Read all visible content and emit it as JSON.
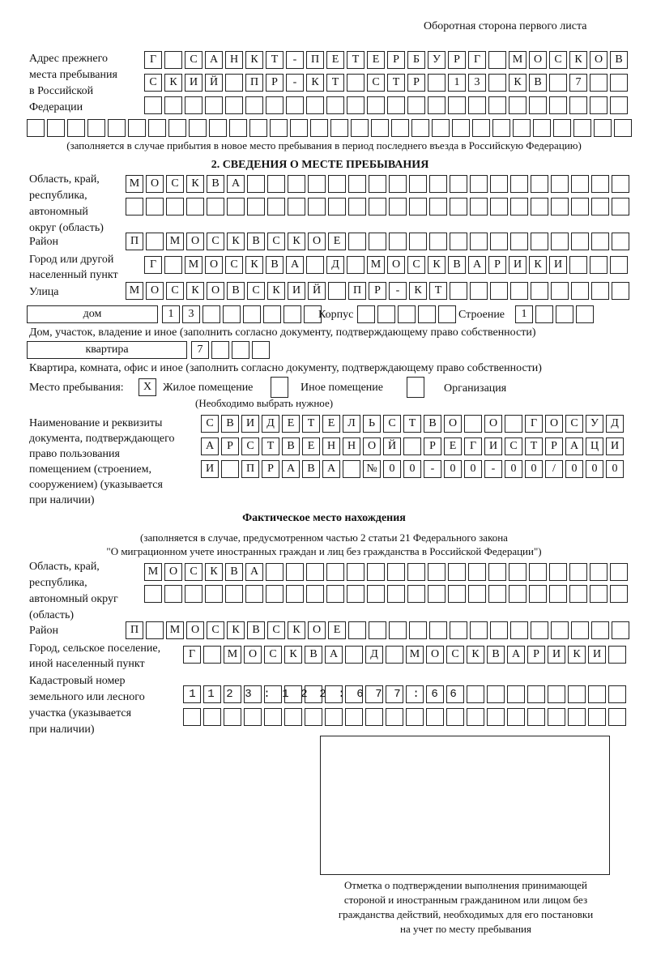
{
  "header": "Оборотная сторона первого листа",
  "prev_address": {
    "label": [
      "Адрес прежнего",
      "места пребывания",
      "в Российской",
      "Федерации"
    ],
    "rows": [
      "Г САНКТ-ПЕТЕРБУРГ МОСКОВ",
      "СКИЙ ПР-КТ СТР 13 КВ 7  ",
      "                        ",
      "                              "
    ],
    "note": "(заполняется в случае прибытия в новое место пребывания в период последнего въезда в Российскую Федерацию)"
  },
  "section2": {
    "title": "2. СВЕДЕНИЯ О МЕСТЕ ПРЕБЫВАНИЯ",
    "region_label": [
      "Область, край,",
      "республика,",
      "автономный",
      "округ (область)"
    ],
    "region_rows": [
      "МОСКВА                   ",
      "                         "
    ],
    "district_label": "Район",
    "district_row": "П МОСКВСКОЕ              ",
    "city_label": [
      "Город или другой",
      "населенный пункт"
    ],
    "city_row": "Г МОСКВА Д МОСКВАРИКИ   ",
    "street_label": "Улица",
    "street_row": "МОСКОВСКИЙ ПР-КТ         ",
    "house_type": "дом",
    "house_row": "13      ",
    "korpus_label": "Корпус",
    "korpus_row": "     ",
    "building_label": "Строение",
    "building_row": "1   ",
    "house_note": "Дом, участок, владение и иное (заполнить согласно документу, подтверждающему право собственности)",
    "flat_type": "квартира",
    "flat_row": "7   ",
    "flat_note": "Квартира, комната, офис и иное (заполнить согласно документу, подтверждающему право собственности)",
    "stay_label": "Место пребывания:",
    "stay_options": [
      {
        "label": "Жилое помещение",
        "mark": "X"
      },
      {
        "label": "Иное помещение",
        "mark": ""
      },
      {
        "label": "Организация",
        "mark": ""
      }
    ],
    "stay_note": "(Необходимо выбрать нужное)",
    "doc_label": [
      "Наименование и реквизиты",
      "документа, подтверждающего",
      "право пользования",
      "помещением (строением,",
      "сооружением) (указывается",
      "при наличии)"
    ],
    "doc_rows": [
      "СВИДЕТЕЛЬСТВО О ГОСУД",
      "АРСТВЕННОЙ РЕГИСТРАЦИ",
      "И ПРАВА №00-00-00/000"
    ]
  },
  "actual": {
    "title": "Фактическое место нахождения",
    "note": [
      "(заполняется в случае, предусмотренном частью 2 статьи 21 Федерального закона",
      "\"О миграционном учете иностранных граждан и лиц без гражданства в Российской Федерации\")"
    ],
    "region_label": [
      "Область, край,",
      "республика,",
      "автономный округ",
      "(область)"
    ],
    "region_rows": [
      "МОСКВА                  ",
      "                        "
    ],
    "district_label": "Район",
    "district_row": "П МОСКВСКОЕ              ",
    "city_label": [
      "Город, сельское поселение,",
      "иной населенный пункт"
    ],
    "city_row": "Г МОСКВА Д МОСКВАРИКИ ",
    "cadastre_label": [
      "Кадастровый номер",
      "земельного или лесного",
      "участка (указывается",
      "при наличии)"
    ],
    "cadastre_rows": [
      "1123:122:677:66       ",
      "                      "
    ]
  },
  "stamp_caption": [
    "Отметка о подтверждении выполнения принимающей",
    "стороной и иностранным гражданином или лицом без",
    "гражданства действий, необходимых для его постановки",
    "на учет по месту пребывания"
  ]
}
